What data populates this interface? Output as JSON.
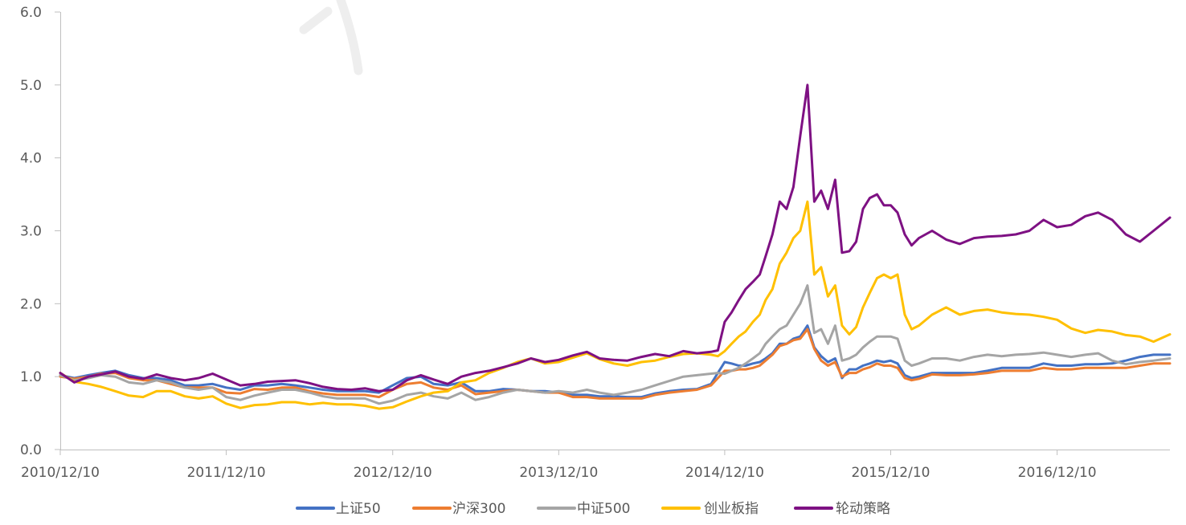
{
  "chart_data": {
    "type": "line",
    "grid": false,
    "legend": "bottom",
    "xlim": [
      "2010-12-10",
      "2017-08-15"
    ],
    "ylim": [
      0,
      6
    ],
    "yticks": [
      "0.0",
      "1.0",
      "2.0",
      "3.0",
      "4.0",
      "5.0",
      "6.0"
    ],
    "xticks": [
      "2010/12/10",
      "2011/12/10",
      "2012/12/10",
      "2013/12/10",
      "2014/12/10",
      "2015/12/10",
      "2016/12/10"
    ],
    "x": [
      "2010-12-10",
      "2011-01-10",
      "2011-02-10",
      "2011-03-10",
      "2011-04-10",
      "2011-05-10",
      "2011-06-10",
      "2011-07-10",
      "2011-08-10",
      "2011-09-10",
      "2011-10-10",
      "2011-11-10",
      "2011-12-10",
      "2012-01-10",
      "2012-02-10",
      "2012-03-10",
      "2012-04-10",
      "2012-05-10",
      "2012-06-10",
      "2012-07-10",
      "2012-08-10",
      "2012-09-10",
      "2012-10-10",
      "2012-11-10",
      "2012-12-10",
      "2013-01-10",
      "2013-02-10",
      "2013-03-10",
      "2013-04-10",
      "2013-05-10",
      "2013-06-10",
      "2013-07-10",
      "2013-08-10",
      "2013-09-10",
      "2013-10-10",
      "2013-11-10",
      "2013-12-10",
      "2014-01-10",
      "2014-02-10",
      "2014-03-10",
      "2014-04-10",
      "2014-05-10",
      "2014-06-10",
      "2014-07-10",
      "2014-08-10",
      "2014-09-10",
      "2014-10-10",
      "2014-11-10",
      "2014-11-25",
      "2014-12-10",
      "2014-12-25",
      "2015-01-10",
      "2015-01-25",
      "2015-02-10",
      "2015-02-25",
      "2015-03-10",
      "2015-03-25",
      "2015-04-10",
      "2015-04-25",
      "2015-05-10",
      "2015-05-25",
      "2015-06-10",
      "2015-06-25",
      "2015-07-10",
      "2015-07-25",
      "2015-08-10",
      "2015-08-25",
      "2015-09-10",
      "2015-09-25",
      "2015-10-10",
      "2015-10-25",
      "2015-11-10",
      "2015-11-25",
      "2015-12-10",
      "2015-12-25",
      "2016-01-10",
      "2016-01-25",
      "2016-02-10",
      "2016-03-10",
      "2016-04-10",
      "2016-05-10",
      "2016-06-10",
      "2016-07-10",
      "2016-08-10",
      "2016-09-10",
      "2016-10-10",
      "2016-11-10",
      "2016-12-10",
      "2017-01-10",
      "2017-02-10",
      "2017-03-10",
      "2017-04-10",
      "2017-05-10",
      "2017-06-10",
      "2017-07-10",
      "2017-08-15"
    ],
    "series": [
      {
        "name": "上证50",
        "color": "#4472C4",
        "values": [
          1.02,
          0.98,
          1.02,
          1.05,
          1.08,
          1.02,
          0.98,
          0.98,
          0.95,
          0.88,
          0.88,
          0.9,
          0.85,
          0.82,
          0.88,
          0.88,
          0.9,
          0.88,
          0.85,
          0.82,
          0.8,
          0.8,
          0.8,
          0.78,
          0.88,
          0.98,
          1.0,
          0.9,
          0.88,
          0.92,
          0.8,
          0.8,
          0.83,
          0.82,
          0.8,
          0.8,
          0.78,
          0.75,
          0.75,
          0.73,
          0.73,
          0.72,
          0.72,
          0.77,
          0.8,
          0.82,
          0.83,
          0.9,
          1.05,
          1.2,
          1.18,
          1.15,
          1.15,
          1.18,
          1.2,
          1.25,
          1.32,
          1.45,
          1.45,
          1.52,
          1.55,
          1.7,
          1.4,
          1.28,
          1.2,
          1.25,
          0.98,
          1.1,
          1.1,
          1.15,
          1.18,
          1.22,
          1.2,
          1.22,
          1.18,
          1.02,
          0.98,
          1.0,
          1.05,
          1.05,
          1.05,
          1.05,
          1.08,
          1.12,
          1.12,
          1.12,
          1.18,
          1.15,
          1.15,
          1.17,
          1.17,
          1.18,
          1.22,
          1.27,
          1.3,
          1.3
        ]
      },
      {
        "name": "沪深300",
        "color": "#ED7D31",
        "values": [
          1.0,
          0.97,
          1.0,
          1.04,
          1.05,
          0.98,
          0.95,
          0.95,
          0.9,
          0.85,
          0.85,
          0.85,
          0.78,
          0.77,
          0.83,
          0.82,
          0.85,
          0.85,
          0.8,
          0.77,
          0.75,
          0.75,
          0.75,
          0.72,
          0.82,
          0.9,
          0.92,
          0.85,
          0.82,
          0.88,
          0.76,
          0.78,
          0.8,
          0.82,
          0.8,
          0.78,
          0.78,
          0.72,
          0.72,
          0.7,
          0.7,
          0.7,
          0.7,
          0.75,
          0.78,
          0.8,
          0.82,
          0.88,
          0.98,
          1.08,
          1.08,
          1.1,
          1.1,
          1.12,
          1.15,
          1.22,
          1.3,
          1.42,
          1.45,
          1.5,
          1.52,
          1.65,
          1.38,
          1.22,
          1.15,
          1.2,
          1.0,
          1.05,
          1.05,
          1.1,
          1.13,
          1.18,
          1.15,
          1.15,
          1.12,
          0.98,
          0.95,
          0.97,
          1.03,
          1.02,
          1.02,
          1.03,
          1.05,
          1.08,
          1.08,
          1.08,
          1.12,
          1.1,
          1.1,
          1.12,
          1.12,
          1.12,
          1.12,
          1.15,
          1.18,
          1.18
        ]
      },
      {
        "name": "中证500",
        "color": "#A5A5A5",
        "values": [
          1.02,
          0.95,
          0.98,
          1.02,
          1.0,
          0.92,
          0.9,
          0.95,
          0.92,
          0.85,
          0.82,
          0.85,
          0.72,
          0.68,
          0.74,
          0.78,
          0.82,
          0.82,
          0.78,
          0.73,
          0.7,
          0.7,
          0.7,
          0.63,
          0.67,
          0.75,
          0.78,
          0.73,
          0.7,
          0.78,
          0.68,
          0.72,
          0.78,
          0.82,
          0.8,
          0.78,
          0.8,
          0.78,
          0.82,
          0.78,
          0.75,
          0.78,
          0.82,
          0.88,
          0.94,
          1.0,
          1.02,
          1.04,
          1.05,
          1.04,
          1.08,
          1.12,
          1.18,
          1.25,
          1.32,
          1.45,
          1.55,
          1.65,
          1.7,
          1.85,
          2.0,
          2.25,
          1.6,
          1.65,
          1.45,
          1.7,
          1.22,
          1.25,
          1.3,
          1.4,
          1.48,
          1.55,
          1.55,
          1.55,
          1.52,
          1.22,
          1.15,
          1.18,
          1.25,
          1.25,
          1.22,
          1.27,
          1.3,
          1.28,
          1.3,
          1.31,
          1.33,
          1.3,
          1.27,
          1.3,
          1.32,
          1.22,
          1.17,
          1.2,
          1.22,
          1.25
        ]
      },
      {
        "name": "创业板指",
        "color": "#FFC000",
        "values": [
          1.05,
          0.93,
          0.9,
          0.86,
          0.8,
          0.74,
          0.72,
          0.8,
          0.8,
          0.73,
          0.7,
          0.73,
          0.63,
          0.57,
          0.61,
          0.62,
          0.65,
          0.65,
          0.62,
          0.64,
          0.62,
          0.62,
          0.6,
          0.56,
          0.58,
          0.66,
          0.73,
          0.78,
          0.8,
          0.92,
          0.95,
          1.05,
          1.12,
          1.2,
          1.25,
          1.18,
          1.2,
          1.26,
          1.32,
          1.24,
          1.18,
          1.15,
          1.2,
          1.22,
          1.27,
          1.31,
          1.32,
          1.3,
          1.28,
          1.35,
          1.45,
          1.55,
          1.62,
          1.75,
          1.85,
          2.05,
          2.2,
          2.55,
          2.7,
          2.9,
          3.0,
          3.4,
          2.4,
          2.5,
          2.1,
          2.25,
          1.7,
          1.58,
          1.68,
          1.95,
          2.15,
          2.35,
          2.4,
          2.35,
          2.4,
          1.85,
          1.65,
          1.7,
          1.85,
          1.95,
          1.85,
          1.9,
          1.92,
          1.88,
          1.86,
          1.85,
          1.82,
          1.78,
          1.66,
          1.6,
          1.64,
          1.62,
          1.57,
          1.55,
          1.48,
          1.58
        ]
      },
      {
        "name": "轮动策略",
        "color": "#7E1183",
        "values": [
          1.05,
          0.92,
          1.0,
          1.03,
          1.07,
          1.0,
          0.97,
          1.03,
          0.98,
          0.95,
          0.98,
          1.04,
          0.96,
          0.88,
          0.9,
          0.93,
          0.94,
          0.95,
          0.91,
          0.86,
          0.83,
          0.82,
          0.84,
          0.8,
          0.82,
          0.95,
          1.02,
          0.96,
          0.9,
          1.0,
          1.05,
          1.08,
          1.13,
          1.18,
          1.25,
          1.2,
          1.23,
          1.29,
          1.34,
          1.25,
          1.23,
          1.22,
          1.27,
          1.31,
          1.28,
          1.35,
          1.32,
          1.34,
          1.36,
          1.75,
          1.88,
          2.05,
          2.2,
          2.3,
          2.4,
          2.65,
          2.95,
          3.4,
          3.3,
          3.6,
          4.3,
          5.0,
          3.4,
          3.55,
          3.3,
          3.7,
          2.7,
          2.72,
          2.85,
          3.3,
          3.45,
          3.5,
          3.35,
          3.35,
          3.25,
          2.95,
          2.8,
          2.9,
          3.0,
          2.88,
          2.82,
          2.9,
          2.92,
          2.93,
          2.95,
          3.0,
          3.15,
          3.05,
          3.08,
          3.2,
          3.25,
          3.15,
          2.95,
          2.85,
          3.0,
          3.18
        ]
      }
    ]
  }
}
